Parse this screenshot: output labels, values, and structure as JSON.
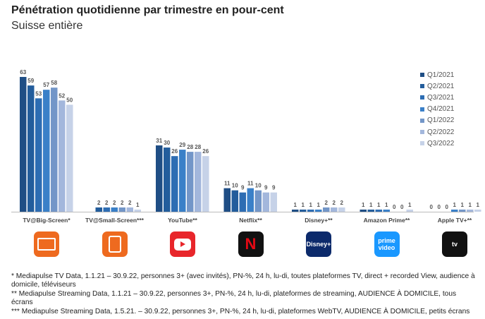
{
  "title": "Pénétration quotidienne par trimestre en pour-cent",
  "subtitle": "Suisse entière",
  "chart_data": {
    "type": "bar",
    "title": "Pénétration quotidienne par trimestre en pour-cent",
    "subtitle": "Suisse entière",
    "categories": [
      "TV@Big-Screen*",
      "TV@Small-Screen***",
      "YouTube**",
      "Netflix**",
      "Disney+**",
      "Amazon Prime**",
      "Apple TV+**"
    ],
    "series": [
      {
        "name": "Q1/2021",
        "color": "#1f4e85",
        "values": [
          63,
          null,
          31,
          11,
          1,
          1,
          0
        ]
      },
      {
        "name": "Q2/2021",
        "color": "#235d9c",
        "values": [
          59,
          2,
          30,
          10,
          1,
          1,
          0
        ]
      },
      {
        "name": "Q3/2021",
        "color": "#2d6db3",
        "values": [
          53,
          2,
          26,
          9,
          1,
          1,
          0
        ]
      },
      {
        "name": "Q4/2021",
        "color": "#3a80c8",
        "values": [
          57,
          2,
          29,
          11,
          1,
          1,
          1
        ]
      },
      {
        "name": "Q1/2022",
        "color": "#7396c8",
        "values": [
          58,
          2,
          28,
          10,
          2,
          0,
          1
        ]
      },
      {
        "name": "Q2/2022",
        "color": "#a3b7dc",
        "values": [
          52,
          2,
          28,
          9,
          2,
          0,
          1
        ]
      },
      {
        "name": "Q3/2022",
        "color": "#c6d2e8",
        "values": [
          50,
          1,
          26,
          9,
          2,
          1,
          1
        ]
      }
    ],
    "ylim": [
      0,
      63
    ],
    "legend": "top-right",
    "grid": false
  },
  "icons": [
    {
      "name": "tv-icon",
      "color": "#ee6a1f",
      "label": ""
    },
    {
      "name": "tablet-icon",
      "color": "#ee6a1f",
      "label": ""
    },
    {
      "name": "youtube-icon",
      "color": "#e8262b",
      "label": ""
    },
    {
      "name": "netflix-icon",
      "color": "#111111",
      "label": "N"
    },
    {
      "name": "disney-plus-icon",
      "color": "#0c2a6b",
      "label": "Disney+"
    },
    {
      "name": "prime-video-icon",
      "color": "#1a98ff",
      "label": "prime video"
    },
    {
      "name": "apple-tv-icon",
      "color": "#111111",
      "label": " tv"
    }
  ],
  "footnotes": [
    "* Mediapulse TV Data, 1.1.21 – 30.9.22, personnes 3+ (avec invités), PN-%, 24 h, lu-di, toutes plateformes TV, direct + recorded View, audience à domicile, téléviseurs",
    "** Mediapulse Streaming Data, 1.1.21 – 30.9.22, personnes 3+, PN-%, 24 h, lu-di, plateformes de streaming, AUDIENCE À DOMICILE, tous écrans",
    "*** Mediapulse Streaming Data, 1.5.21. – 30.9.22, personnes 3+, PN-%, 24 h, lu-di, plateformes WebTV, AUDIENCE À DOMICILE, petits écrans"
  ]
}
